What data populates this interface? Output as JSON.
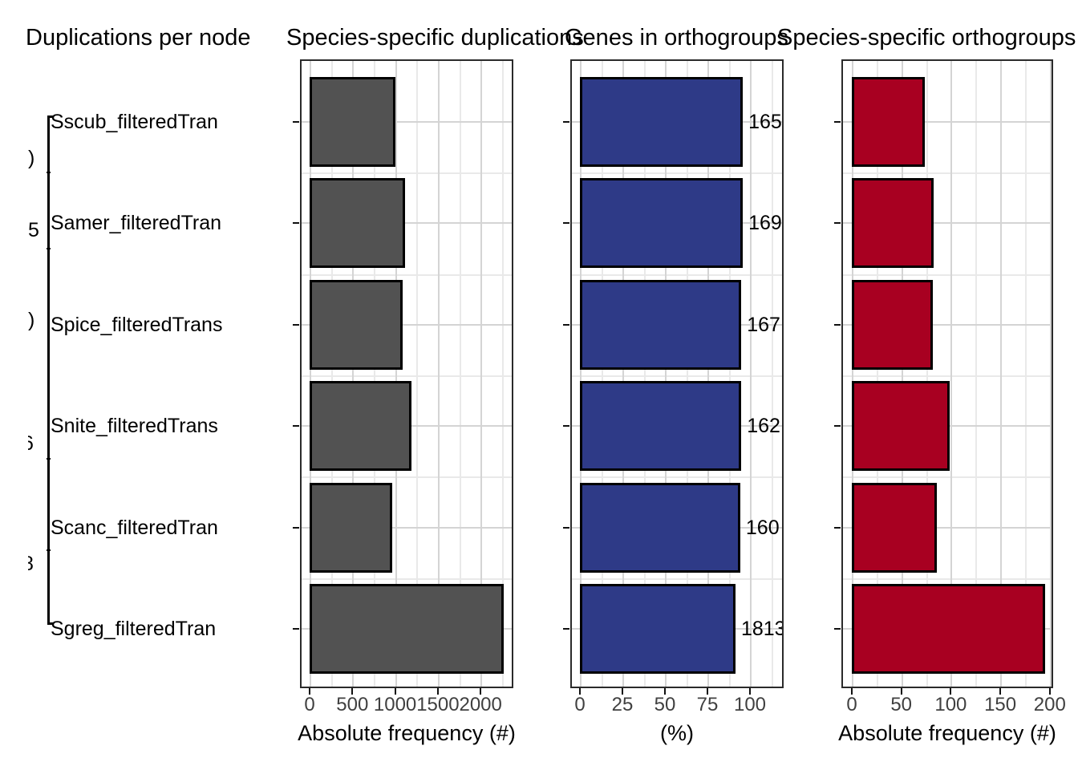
{
  "figure_titles": [
    "Duplications per node",
    "Species-specific duplications",
    "Genes in orthogroups",
    "Species-specific orthogroups"
  ],
  "tree": {
    "species_labels": [
      "Sscub_filteredTran",
      "Samer_filteredTran",
      "Spice_filteredTrans",
      "Snite_filteredTrans",
      "Scanc_filteredTran",
      "Sgreg_filteredTran"
    ],
    "node_label_fragments": [
      ")",
      "5",
      ")",
      "6",
      "8"
    ]
  },
  "colors": {
    "gray_bar": "#525252",
    "blue_bar": "#2E3A87",
    "red_bar": "#A80021",
    "bar_outline": "#000000",
    "panel_border": "#2b2b2b",
    "grid_major": "#d4d4d4",
    "grid_minor": "#e9e9e9",
    "axis_text": "#404040"
  },
  "chart_data": [
    {
      "type": "bar",
      "orientation": "horizontal",
      "title": "Species-specific duplications",
      "categories": [
        "Sscub_filteredTran",
        "Samer_filteredTran",
        "Spice_filteredTrans",
        "Snite_filteredTrans",
        "Scanc_filteredTran",
        "Sgreg_filteredTran"
      ],
      "values": [
        1005,
        1115,
        1090,
        1190,
        965,
        2270
      ],
      "xlabel": "Absolute frequency (#)",
      "xticks": [
        0,
        500,
        1000,
        1500,
        2000
      ],
      "xlim": [
        0,
        2380
      ],
      "grid": true,
      "legend": "none",
      "bar_color": "#525252"
    },
    {
      "type": "bar",
      "orientation": "horizontal",
      "title": "Genes in orthogroups",
      "categories": [
        "Sscub_filteredTran",
        "Samer_filteredTran",
        "Spice_filteredTrans",
        "Snite_filteredTrans",
        "Scanc_filteredTran",
        "Sgreg_filteredTran"
      ],
      "values": [
        95.8,
        95.8,
        94.9,
        94.9,
        94.3,
        91.5
      ],
      "bar_labels": [
        "165",
        "169",
        "167",
        "162",
        "160",
        "1813"
      ],
      "xlabel": "(%)",
      "xticks": [
        0,
        25,
        50,
        75,
        100
      ],
      "xlim": [
        0,
        120
      ],
      "grid": true,
      "legend": "none",
      "bar_color": "#2E3A87"
    },
    {
      "type": "bar",
      "orientation": "horizontal",
      "title": "Species-specific orthogroups",
      "categories": [
        "Sscub_filteredTran",
        "Samer_filteredTran",
        "Spice_filteredTrans",
        "Snite_filteredTrans",
        "Scanc_filteredTran",
        "Sgreg_filteredTran"
      ],
      "values": [
        74,
        83,
        82,
        99,
        86,
        195
      ],
      "xlabel": "Absolute frequency (#)",
      "xticks": [
        0,
        50,
        100,
        150,
        200
      ],
      "xlim": [
        0,
        203
      ],
      "grid": true,
      "legend": "none",
      "bar_color": "#A80021"
    }
  ]
}
